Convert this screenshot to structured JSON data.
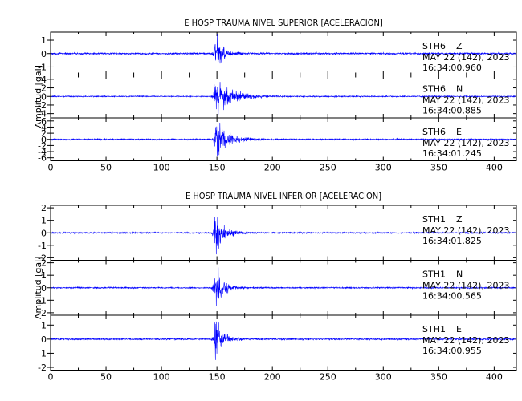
{
  "chart_data": [
    {
      "type": "line",
      "title": "E HOSP TRAUMA NIVEL SUPERIOR [ACELERACION]",
      "ylabel": "Amplitud [gal]",
      "xlabel": "",
      "xlim": [
        0,
        420
      ],
      "x_ticks": [
        0,
        50,
        100,
        150,
        200,
        250,
        300,
        350,
        400
      ],
      "channels": [
        {
          "station": "STH6",
          "component": "Z",
          "date": "MAY 22 (142), 2023",
          "time": "16:34:00.960",
          "ylim": [
            -1.6,
            1.6
          ],
          "y_ticks": [
            -1,
            0,
            1
          ],
          "onset": 147,
          "peak": 1.5,
          "noise": 0.06,
          "decay": 7
        },
        {
          "station": "STH6",
          "component": "N",
          "date": "MAY 22 (142), 2023",
          "time": "16:34:00.885",
          "ylim": [
            -5,
            5
          ],
          "y_ticks": [
            -4,
            -2,
            0,
            2,
            4
          ],
          "onset": 147,
          "peak": 4.8,
          "noise": 0.12,
          "decay": 13
        },
        {
          "station": "STH6",
          "component": "E",
          "date": "MAY 22 (142), 2023",
          "time": "16:34:01.245",
          "ylim": [
            -7,
            7
          ],
          "y_ticks": [
            -6,
            -4,
            -2,
            0,
            2,
            4,
            6
          ],
          "onset": 147,
          "peak": 6.5,
          "noise": 0.2,
          "decay": 11
        }
      ]
    },
    {
      "type": "line",
      "title": "E HOSP TRAUMA NIVEL INFERIOR [ACELERACION]",
      "ylabel": "Amplitud [gal]",
      "xlabel": "",
      "xlim": [
        0,
        420
      ],
      "x_ticks": [
        0,
        50,
        100,
        150,
        200,
        250,
        300,
        350,
        400
      ],
      "channels": [
        {
          "station": "STH1",
          "component": "Z",
          "date": "MAY 22 (142), 2023",
          "time": "16:34:01.825",
          "ylim": [
            -2.2,
            2.2
          ],
          "y_ticks": [
            -2,
            -1,
            0,
            1,
            2
          ],
          "onset": 147,
          "peak": 2.0,
          "noise": 0.05,
          "decay": 7
        },
        {
          "station": "STH1",
          "component": "N",
          "date": "MAY 22 (142), 2023",
          "time": "16:34:00.565",
          "ylim": [
            -2.2,
            2.2
          ],
          "y_ticks": [
            -2,
            -1,
            0,
            1,
            2
          ],
          "onset": 147,
          "peak": 2.0,
          "noise": 0.05,
          "decay": 6
        },
        {
          "station": "STH1",
          "component": "E",
          "date": "MAY 22 (142), 2023",
          "time": "16:34:00.955",
          "ylim": [
            -2.2,
            1.7
          ],
          "y_ticks": [
            -2,
            -1,
            0,
            1
          ],
          "onset": 147,
          "peak": 2.0,
          "noise": 0.05,
          "decay": 6
        }
      ]
    }
  ],
  "colors": {
    "trace": "#0000ff",
    "axes": "#000000"
  }
}
